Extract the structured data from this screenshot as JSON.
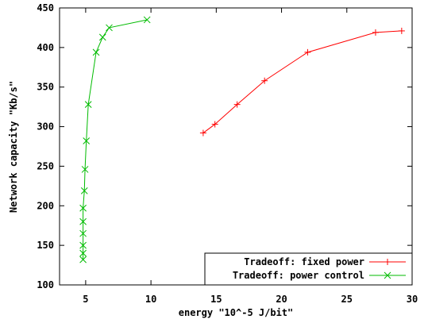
{
  "chart_data": {
    "type": "line",
    "title": "",
    "xlabel": "energy \"10^-5 J/bit\"",
    "ylabel": "Network capacity \"Kb/s\"",
    "xlim": [
      3,
      30
    ],
    "ylim": [
      100,
      450
    ],
    "xticks": [
      "5",
      "10",
      "15",
      "20",
      "25",
      "30"
    ],
    "yticks": [
      "100",
      "150",
      "200",
      "250",
      "300",
      "350",
      "400",
      "450"
    ],
    "grid": false,
    "legend_position": "bottom-right",
    "series": [
      {
        "name": "Tradeoff: fixed power",
        "color": "#ff0000",
        "marker": "plus",
        "points": [
          [
            14.0,
            292
          ],
          [
            14.9,
            303
          ],
          [
            16.6,
            328
          ],
          [
            18.7,
            358
          ],
          [
            22.0,
            394
          ],
          [
            27.2,
            419
          ],
          [
            29.2,
            421
          ]
        ]
      },
      {
        "name": "Tradeoff: power control",
        "color": "#00bb00",
        "marker": "cross",
        "points": [
          [
            4.8,
            132
          ],
          [
            4.8,
            140
          ],
          [
            4.8,
            150
          ],
          [
            4.8,
            165
          ],
          [
            4.8,
            180
          ],
          [
            4.8,
            197
          ],
          [
            4.9,
            219
          ],
          [
            4.95,
            246
          ],
          [
            5.05,
            282
          ],
          [
            5.2,
            328
          ],
          [
            5.8,
            394
          ],
          [
            6.3,
            413
          ],
          [
            6.8,
            425
          ],
          [
            9.7,
            435
          ]
        ]
      }
    ]
  }
}
